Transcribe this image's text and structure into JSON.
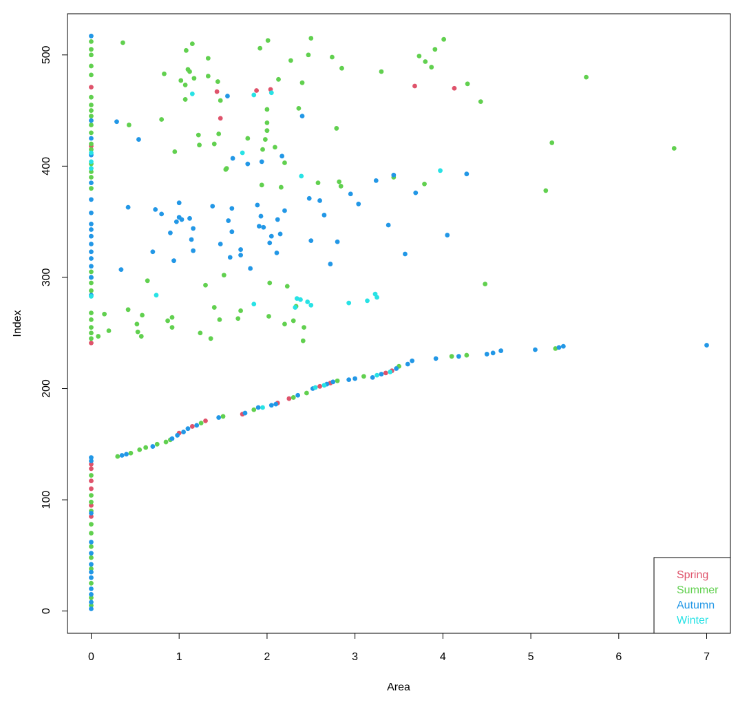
{
  "chart_data": {
    "type": "scatter",
    "title": "",
    "xlabel": "Area",
    "ylabel": "Index",
    "xlim": [
      -0.27,
      7.27
    ],
    "ylim": [
      -20,
      537
    ],
    "x_ticks": [
      0,
      1,
      2,
      3,
      4,
      5,
      6,
      7
    ],
    "y_ticks": [
      0,
      100,
      200,
      300,
      400,
      500
    ],
    "grid": false,
    "legend_position": "bottom-right",
    "legend": [
      {
        "name": "Spring",
        "color": "#DF536B"
      },
      {
        "name": "Summer",
        "color": "#61D04F"
      },
      {
        "name": "Autumn",
        "color": "#2297E6"
      },
      {
        "name": "Winter",
        "color": "#28E2E5"
      }
    ],
    "series": [
      {
        "name": "Spring",
        "color": "#DF536B",
        "points": [
          [
            0,
            241
          ],
          [
            0,
            418
          ],
          [
            0,
            471
          ],
          [
            0,
            110
          ],
          [
            0,
            117
          ],
          [
            0,
            128
          ],
          [
            0,
            132
          ],
          [
            0,
            95
          ],
          [
            0,
            85
          ],
          [
            1.43,
            467
          ],
          [
            1.47,
            443
          ],
          [
            1.88,
            468
          ],
          [
            2.04,
            469
          ],
          [
            3.68,
            472
          ],
          [
            4.13,
            470
          ],
          [
            1.0,
            160
          ],
          [
            1.15,
            166
          ],
          [
            1.3,
            171
          ],
          [
            1.72,
            177
          ],
          [
            2.12,
            187
          ],
          [
            2.25,
            191
          ],
          [
            2.6,
            202
          ],
          [
            2.72,
            205
          ],
          [
            3.35,
            214
          ],
          [
            3.42,
            216
          ]
        ]
      },
      {
        "name": "Summer",
        "color": "#61D04F",
        "points": [
          [
            0,
            245
          ],
          [
            0,
            250
          ],
          [
            0,
            255
          ],
          [
            0,
            262
          ],
          [
            0,
            268
          ],
          [
            0,
            288
          ],
          [
            0,
            295
          ],
          [
            0,
            300
          ],
          [
            0,
            305
          ],
          [
            0,
            380
          ],
          [
            0,
            390
          ],
          [
            0,
            395
          ],
          [
            0,
            402
          ],
          [
            0,
            415
          ],
          [
            0,
            420
          ],
          [
            0,
            430
          ],
          [
            0,
            437
          ],
          [
            0,
            445
          ],
          [
            0,
            450
          ],
          [
            0,
            455
          ],
          [
            0,
            462
          ],
          [
            0,
            482
          ],
          [
            0,
            490
          ],
          [
            0,
            500
          ],
          [
            0,
            505
          ],
          [
            0,
            512
          ],
          [
            0,
            5
          ],
          [
            0,
            12
          ],
          [
            0,
            25
          ],
          [
            0,
            38
          ],
          [
            0,
            48
          ],
          [
            0,
            58
          ],
          [
            0,
            70
          ],
          [
            0,
            78
          ],
          [
            0,
            90
          ],
          [
            0,
            98
          ],
          [
            0,
            104
          ],
          [
            0,
            122
          ],
          [
            0.08,
            247
          ],
          [
            0.15,
            267
          ],
          [
            0.2,
            252
          ],
          [
            0.36,
            511
          ],
          [
            0.42,
            271
          ],
          [
            0.43,
            437
          ],
          [
            0.52,
            258
          ],
          [
            0.53,
            251
          ],
          [
            0.57,
            247
          ],
          [
            0.58,
            266
          ],
          [
            0.64,
            297
          ],
          [
            0.8,
            442
          ],
          [
            0.83,
            483
          ],
          [
            0.87,
            261
          ],
          [
            0.92,
            264
          ],
          [
            0.92,
            255
          ],
          [
            0.95,
            413
          ],
          [
            1.02,
            477
          ],
          [
            1.07,
            473
          ],
          [
            1.08,
            504
          ],
          [
            1.1,
            487
          ],
          [
            1.12,
            485
          ],
          [
            1.15,
            510
          ],
          [
            1.17,
            479
          ],
          [
            1.07,
            460
          ],
          [
            1.22,
            428
          ],
          [
            1.23,
            419
          ],
          [
            1.24,
            250
          ],
          [
            1.3,
            293
          ],
          [
            1.33,
            481
          ],
          [
            1.33,
            497
          ],
          [
            1.36,
            245
          ],
          [
            1.4,
            273
          ],
          [
            1.4,
            420
          ],
          [
            1.44,
            476
          ],
          [
            1.45,
            429
          ],
          [
            1.46,
            262
          ],
          [
            1.47,
            459
          ],
          [
            1.51,
            302
          ],
          [
            1.53,
            397
          ],
          [
            1.54,
            398
          ],
          [
            1.67,
            263
          ],
          [
            1.7,
            270
          ],
          [
            1.78,
            425
          ],
          [
            1.92,
            506
          ],
          [
            1.94,
            383
          ],
          [
            1.95,
            415
          ],
          [
            1.98,
            424
          ],
          [
            2.0,
            439
          ],
          [
            2.0,
            432
          ],
          [
            2.0,
            451
          ],
          [
            2.01,
            513
          ],
          [
            2.02,
            265
          ],
          [
            2.03,
            295
          ],
          [
            2.09,
            417
          ],
          [
            2.13,
            478
          ],
          [
            2.16,
            381
          ],
          [
            2.2,
            403
          ],
          [
            2.23,
            292
          ],
          [
            2.2,
            258
          ],
          [
            2.27,
            495
          ],
          [
            2.3,
            261
          ],
          [
            2.33,
            274
          ],
          [
            2.36,
            452
          ],
          [
            2.4,
            475
          ],
          [
            2.42,
            255
          ],
          [
            2.41,
            243
          ],
          [
            2.47,
            500
          ],
          [
            2.5,
            515
          ],
          [
            2.58,
            385
          ],
          [
            2.74,
            498
          ],
          [
            2.79,
            434
          ],
          [
            2.82,
            386
          ],
          [
            2.84,
            382
          ],
          [
            2.85,
            488
          ],
          [
            3.3,
            485
          ],
          [
            3.44,
            390
          ],
          [
            3.73,
            499
          ],
          [
            3.79,
            384
          ],
          [
            3.8,
            494
          ],
          [
            3.87,
            489
          ],
          [
            3.91,
            505
          ],
          [
            4.01,
            514
          ],
          [
            4.28,
            474
          ],
          [
            4.43,
            458
          ],
          [
            4.48,
            294
          ],
          [
            5.17,
            378
          ],
          [
            5.24,
            421
          ],
          [
            5.63,
            480
          ],
          [
            6.63,
            416
          ],
          [
            0.3,
            139
          ],
          [
            0.45,
            142
          ],
          [
            0.55,
            145
          ],
          [
            0.62,
            147
          ],
          [
            0.75,
            150
          ],
          [
            0.85,
            152
          ],
          [
            0.9,
            154
          ],
          [
            1.25,
            169
          ],
          [
            1.5,
            175
          ],
          [
            1.85,
            181
          ],
          [
            2.3,
            192
          ],
          [
            2.45,
            196
          ],
          [
            2.8,
            207
          ],
          [
            3.1,
            211
          ],
          [
            3.5,
            220
          ],
          [
            4.1,
            229
          ],
          [
            4.27,
            230
          ],
          [
            5.28,
            236
          ]
        ]
      },
      {
        "name": "Autumn",
        "color": "#2297E6",
        "points": [
          [
            0,
            2
          ],
          [
            0,
            8
          ],
          [
            0,
            15
          ],
          [
            0,
            20
          ],
          [
            0,
            30
          ],
          [
            0,
            35
          ],
          [
            0,
            42
          ],
          [
            0,
            52
          ],
          [
            0,
            62
          ],
          [
            0,
            88
          ],
          [
            0,
            135
          ],
          [
            0,
            138
          ],
          [
            0,
            284
          ],
          [
            0,
            300
          ],
          [
            0,
            310
          ],
          [
            0,
            317
          ],
          [
            0,
            323
          ],
          [
            0,
            330
          ],
          [
            0,
            337
          ],
          [
            0,
            343
          ],
          [
            0,
            348
          ],
          [
            0,
            358
          ],
          [
            0,
            370
          ],
          [
            0,
            385
          ],
          [
            0,
            410
          ],
          [
            0,
            425
          ],
          [
            0,
            441
          ],
          [
            0,
            517
          ],
          [
            0.29,
            440
          ],
          [
            0.34,
            307
          ],
          [
            0.42,
            363
          ],
          [
            0.54,
            424
          ],
          [
            0.7,
            323
          ],
          [
            0.73,
            361
          ],
          [
            0.8,
            357
          ],
          [
            0.9,
            340
          ],
          [
            0.94,
            315
          ],
          [
            0.97,
            350
          ],
          [
            1.0,
            354
          ],
          [
            1.0,
            367
          ],
          [
            1.03,
            352
          ],
          [
            1.12,
            353
          ],
          [
            1.14,
            334
          ],
          [
            1.16,
            324
          ],
          [
            1.16,
            344
          ],
          [
            1.38,
            364
          ],
          [
            1.47,
            330
          ],
          [
            1.55,
            463
          ],
          [
            1.56,
            351
          ],
          [
            1.58,
            318
          ],
          [
            1.6,
            341
          ],
          [
            1.6,
            362
          ],
          [
            1.61,
            407
          ],
          [
            1.7,
            320
          ],
          [
            1.7,
            325
          ],
          [
            1.78,
            402
          ],
          [
            1.81,
            308
          ],
          [
            1.89,
            365
          ],
          [
            1.91,
            346
          ],
          [
            1.93,
            355
          ],
          [
            1.94,
            404
          ],
          [
            1.96,
            345
          ],
          [
            2.03,
            331
          ],
          [
            2.05,
            337
          ],
          [
            2.11,
            322
          ],
          [
            2.12,
            352
          ],
          [
            2.15,
            339
          ],
          [
            2.17,
            409
          ],
          [
            2.2,
            360
          ],
          [
            2.4,
            445
          ],
          [
            2.48,
            371
          ],
          [
            2.5,
            333
          ],
          [
            2.6,
            369
          ],
          [
            2.65,
            356
          ],
          [
            2.72,
            312
          ],
          [
            2.8,
            332
          ],
          [
            2.95,
            375
          ],
          [
            3.04,
            366
          ],
          [
            3.24,
            387
          ],
          [
            3.38,
            347
          ],
          [
            3.44,
            392
          ],
          [
            3.57,
            321
          ],
          [
            3.69,
            376
          ],
          [
            4.05,
            338
          ],
          [
            4.27,
            393
          ],
          [
            0.35,
            140
          ],
          [
            0.4,
            141
          ],
          [
            0.7,
            148
          ],
          [
            0.92,
            155
          ],
          [
            0.98,
            158
          ],
          [
            1.05,
            161
          ],
          [
            1.1,
            164
          ],
          [
            1.2,
            167
          ],
          [
            1.45,
            174
          ],
          [
            1.75,
            178
          ],
          [
            1.9,
            183
          ],
          [
            2.05,
            185
          ],
          [
            2.1,
            186
          ],
          [
            2.35,
            194
          ],
          [
            2.52,
            200
          ],
          [
            2.68,
            204
          ],
          [
            2.75,
            206
          ],
          [
            2.93,
            208
          ],
          [
            3.0,
            209
          ],
          [
            3.2,
            210
          ],
          [
            3.3,
            213
          ],
          [
            3.47,
            218
          ],
          [
            3.6,
            222
          ],
          [
            3.65,
            225
          ],
          [
            3.92,
            227
          ],
          [
            4.18,
            229
          ],
          [
            4.5,
            231
          ],
          [
            4.57,
            232
          ],
          [
            4.66,
            234
          ],
          [
            5.05,
            235
          ],
          [
            5.32,
            237
          ],
          [
            5.37,
            238
          ],
          [
            7.0,
            239
          ]
        ]
      },
      {
        "name": "Winter",
        "color": "#28E2E5",
        "points": [
          [
            0,
            283
          ],
          [
            0,
            398
          ],
          [
            0,
            404
          ],
          [
            0,
            412
          ],
          [
            0.74,
            284
          ],
          [
            1.15,
            465
          ],
          [
            1.72,
            412
          ],
          [
            1.85,
            276
          ],
          [
            1.85,
            464
          ],
          [
            2.05,
            466
          ],
          [
            2.32,
            273
          ],
          [
            2.34,
            281
          ],
          [
            2.38,
            280
          ],
          [
            2.39,
            391
          ],
          [
            2.46,
            278
          ],
          [
            2.5,
            275
          ],
          [
            2.93,
            277
          ],
          [
            3.14,
            279
          ],
          [
            3.23,
            285
          ],
          [
            3.25,
            282
          ],
          [
            3.97,
            396
          ],
          [
            1.95,
            183
          ],
          [
            2.55,
            201
          ],
          [
            2.65,
            203
          ],
          [
            3.25,
            212
          ],
          [
            3.4,
            215
          ]
        ]
      }
    ]
  }
}
